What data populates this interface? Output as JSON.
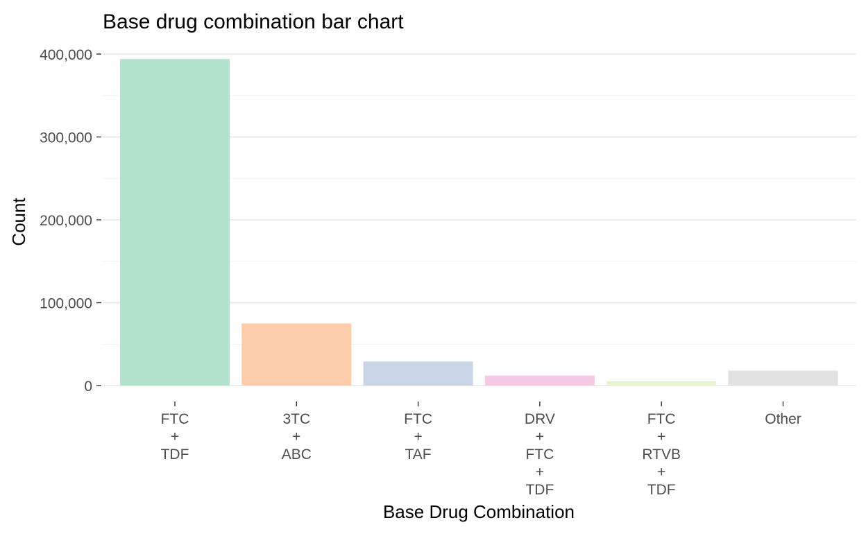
{
  "chart_data": {
    "type": "bar",
    "title": "Base drug combination bar chart",
    "xlabel": "Base Drug Combination",
    "ylabel": "Count",
    "ylim": [
      0,
      400000
    ],
    "yticks": [
      0,
      100000,
      200000,
      300000,
      400000
    ],
    "ytick_labels": [
      "0",
      "100,000",
      "200,000",
      "300,000",
      "400,000"
    ],
    "categories": [
      [
        "FTC",
        "+",
        "TDF"
      ],
      [
        "3TC",
        "+",
        "ABC"
      ],
      [
        "FTC",
        "+",
        "TAF"
      ],
      [
        "DRV",
        "+",
        "FTC",
        "+",
        "TDF"
      ],
      [
        "FTC",
        "+",
        "RTVB",
        "+",
        "TDF"
      ],
      [
        "Other"
      ]
    ],
    "values": [
      394000,
      75000,
      29000,
      12000,
      5000,
      18000
    ],
    "colors": [
      "#b3e2cd",
      "#fdcdac",
      "#cbd5e8",
      "#f4cae4",
      "#e6f5c9",
      "#e2e2e2"
    ],
    "grid": true,
    "legend": "none"
  }
}
